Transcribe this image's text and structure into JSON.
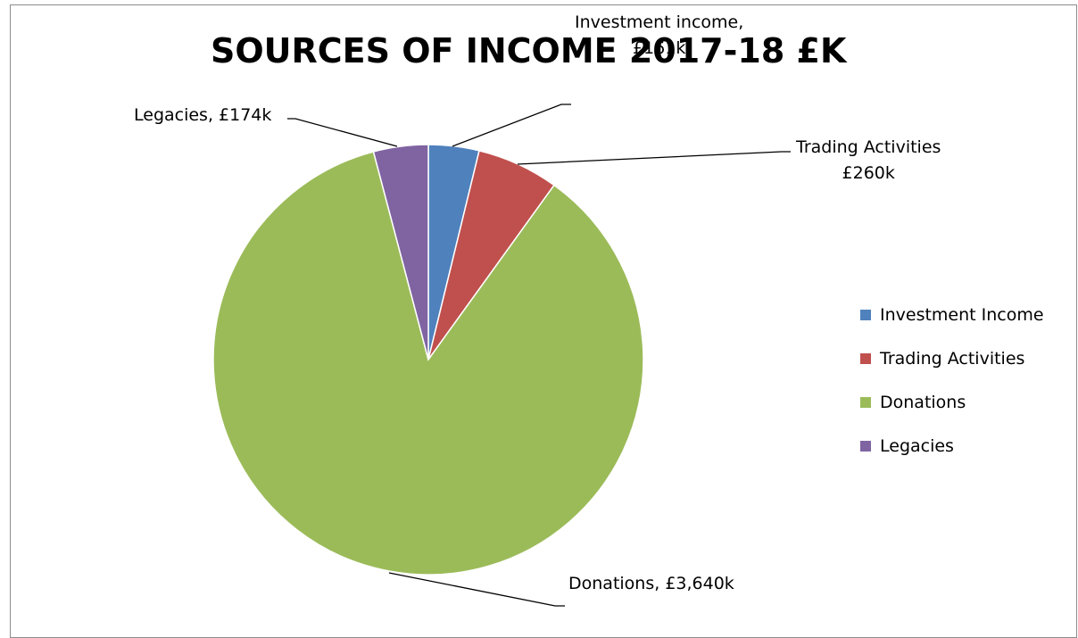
{
  "chart_data": {
    "type": "pie",
    "title": "SOURCES OF INCOME 2017-18 £K",
    "unit": "£k",
    "slices": [
      {
        "name": "Investment Income",
        "value": 161,
        "label": "Investment income,\n£161k",
        "color": "#4f81bd"
      },
      {
        "name": "Trading Activities",
        "value": 260,
        "label": "Trading Activities\n£260k",
        "color": "#c0504d"
      },
      {
        "name": "Donations",
        "value": 3640,
        "label": "Donations, £3,640k",
        "color": "#9bbb59"
      },
      {
        "name": "Legacies",
        "value": 174,
        "label": "Legacies, £174k",
        "color": "#8064a2"
      }
    ],
    "legend": {
      "position": "right",
      "entries": [
        "Investment Income",
        "Trading Activities",
        "Donations",
        "Legacies"
      ]
    }
  }
}
